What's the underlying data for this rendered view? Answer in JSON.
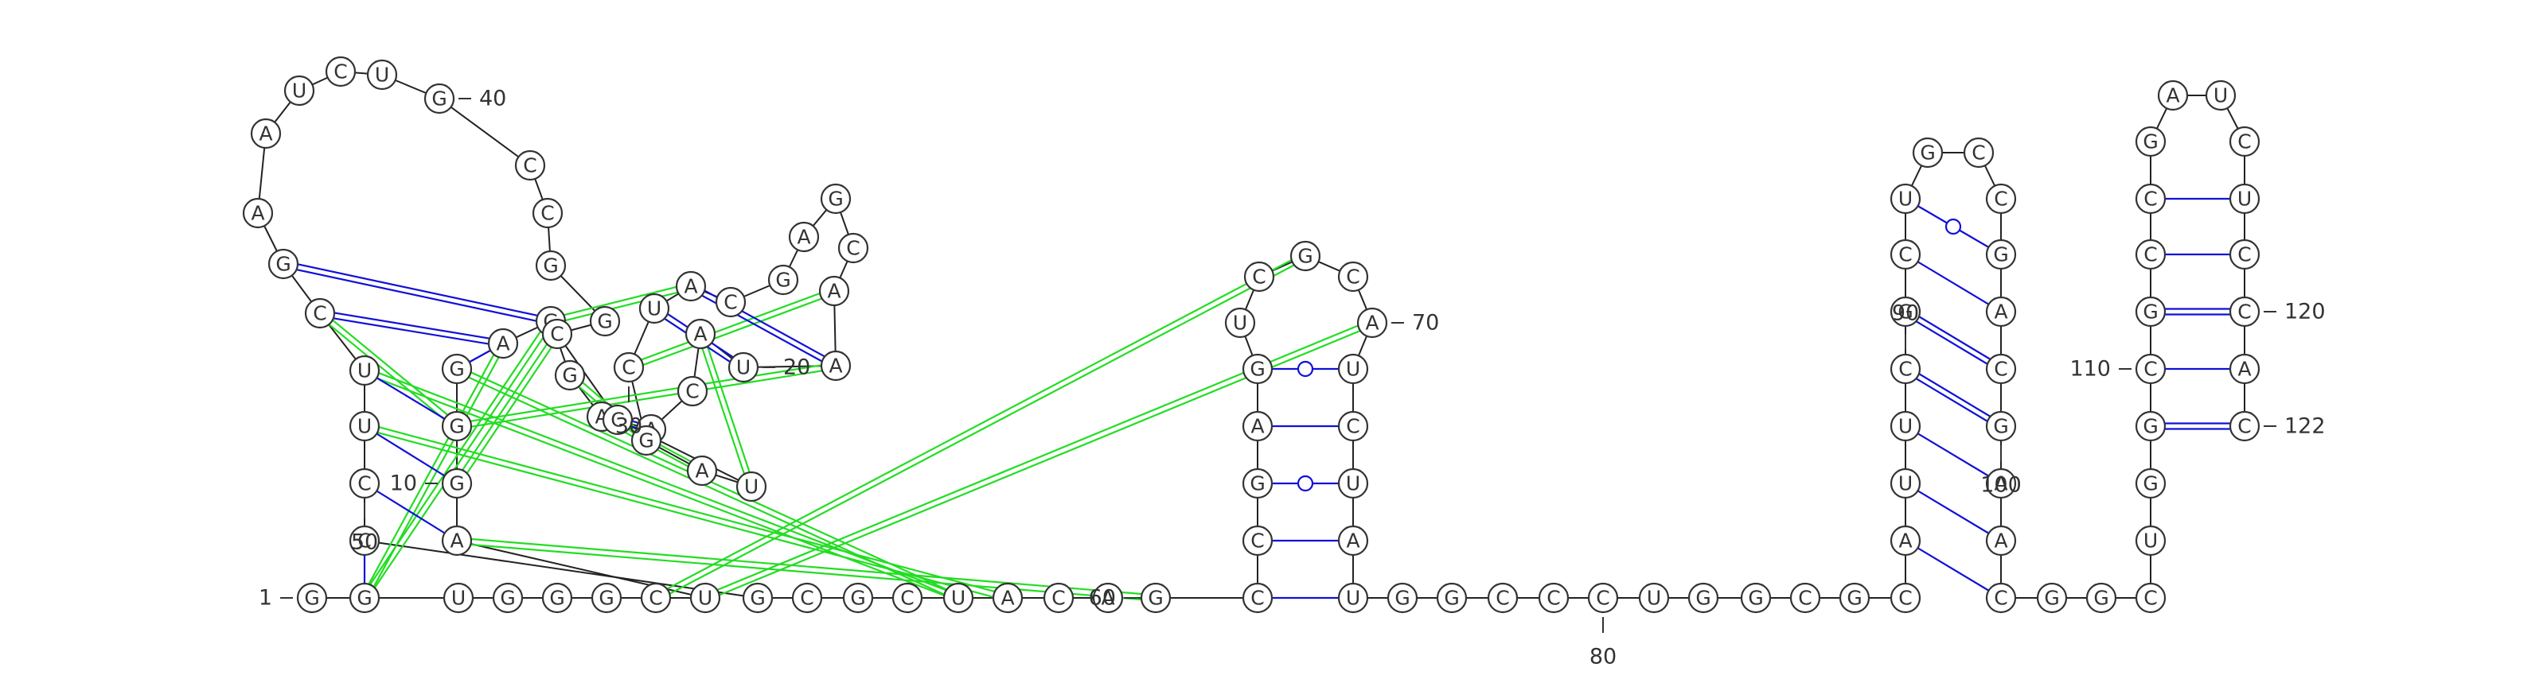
{
  "sequence": "GGUGGGCUAGGGAGGAACAUAACGAGCAUCGAUCCGGCCGUCUAAGCUUCCGCGCUACAGCCGAGUCGCAUCUAUGGCCCUGGCGCAUUCGCUGCCGACGAACGGCUGGCGCCGAUCUCCAC",
  "nucleotides": [
    "G",
    "G",
    "U",
    "G",
    "G",
    "G",
    "C",
    "U",
    "A",
    "G",
    "G",
    "G",
    "A",
    "G",
    "G",
    "A",
    "A",
    "C",
    "A",
    "U",
    "A",
    "A",
    "C",
    "G",
    "A",
    "G",
    "C",
    "A",
    "U",
    "C",
    "G",
    "A",
    "U",
    "C",
    "C",
    "G",
    "G",
    "C",
    "C",
    "G",
    "U",
    "C",
    "U",
    "A",
    "A",
    "G",
    "C",
    "U",
    "U",
    "C",
    "C",
    "G",
    "C",
    "G",
    "C",
    "U",
    "A",
    "C",
    "A",
    "G",
    "C",
    "C",
    "G",
    "A",
    "G",
    "U",
    "C",
    "G",
    "C",
    "A",
    "U",
    "C",
    "U",
    "A",
    "U",
    "G",
    "G",
    "C",
    "C",
    "C",
    "U",
    "G",
    "G",
    "C",
    "G",
    "C",
    "A",
    "U",
    "U",
    "C",
    "G",
    "C",
    "U",
    "G",
    "C",
    "C",
    "G",
    "A",
    "C",
    "G",
    "A",
    "A",
    "C",
    "G",
    "G",
    "C",
    "U",
    "G",
    "G",
    "C",
    "G",
    "C",
    "C",
    "G",
    "A",
    "U",
    "C",
    "U",
    "C",
    "C",
    "A",
    "C"
  ],
  "index_labels": [
    "1",
    "10",
    "20",
    "30",
    "40",
    "50",
    "60",
    "70",
    "80",
    "90",
    "100",
    "110",
    "120",
    "122"
  ],
  "colors": {
    "backbone": "#222222",
    "base_pair": "#1010d8",
    "pseudoknot": "#22dd22",
    "nucleotide_outline": "#333333"
  }
}
